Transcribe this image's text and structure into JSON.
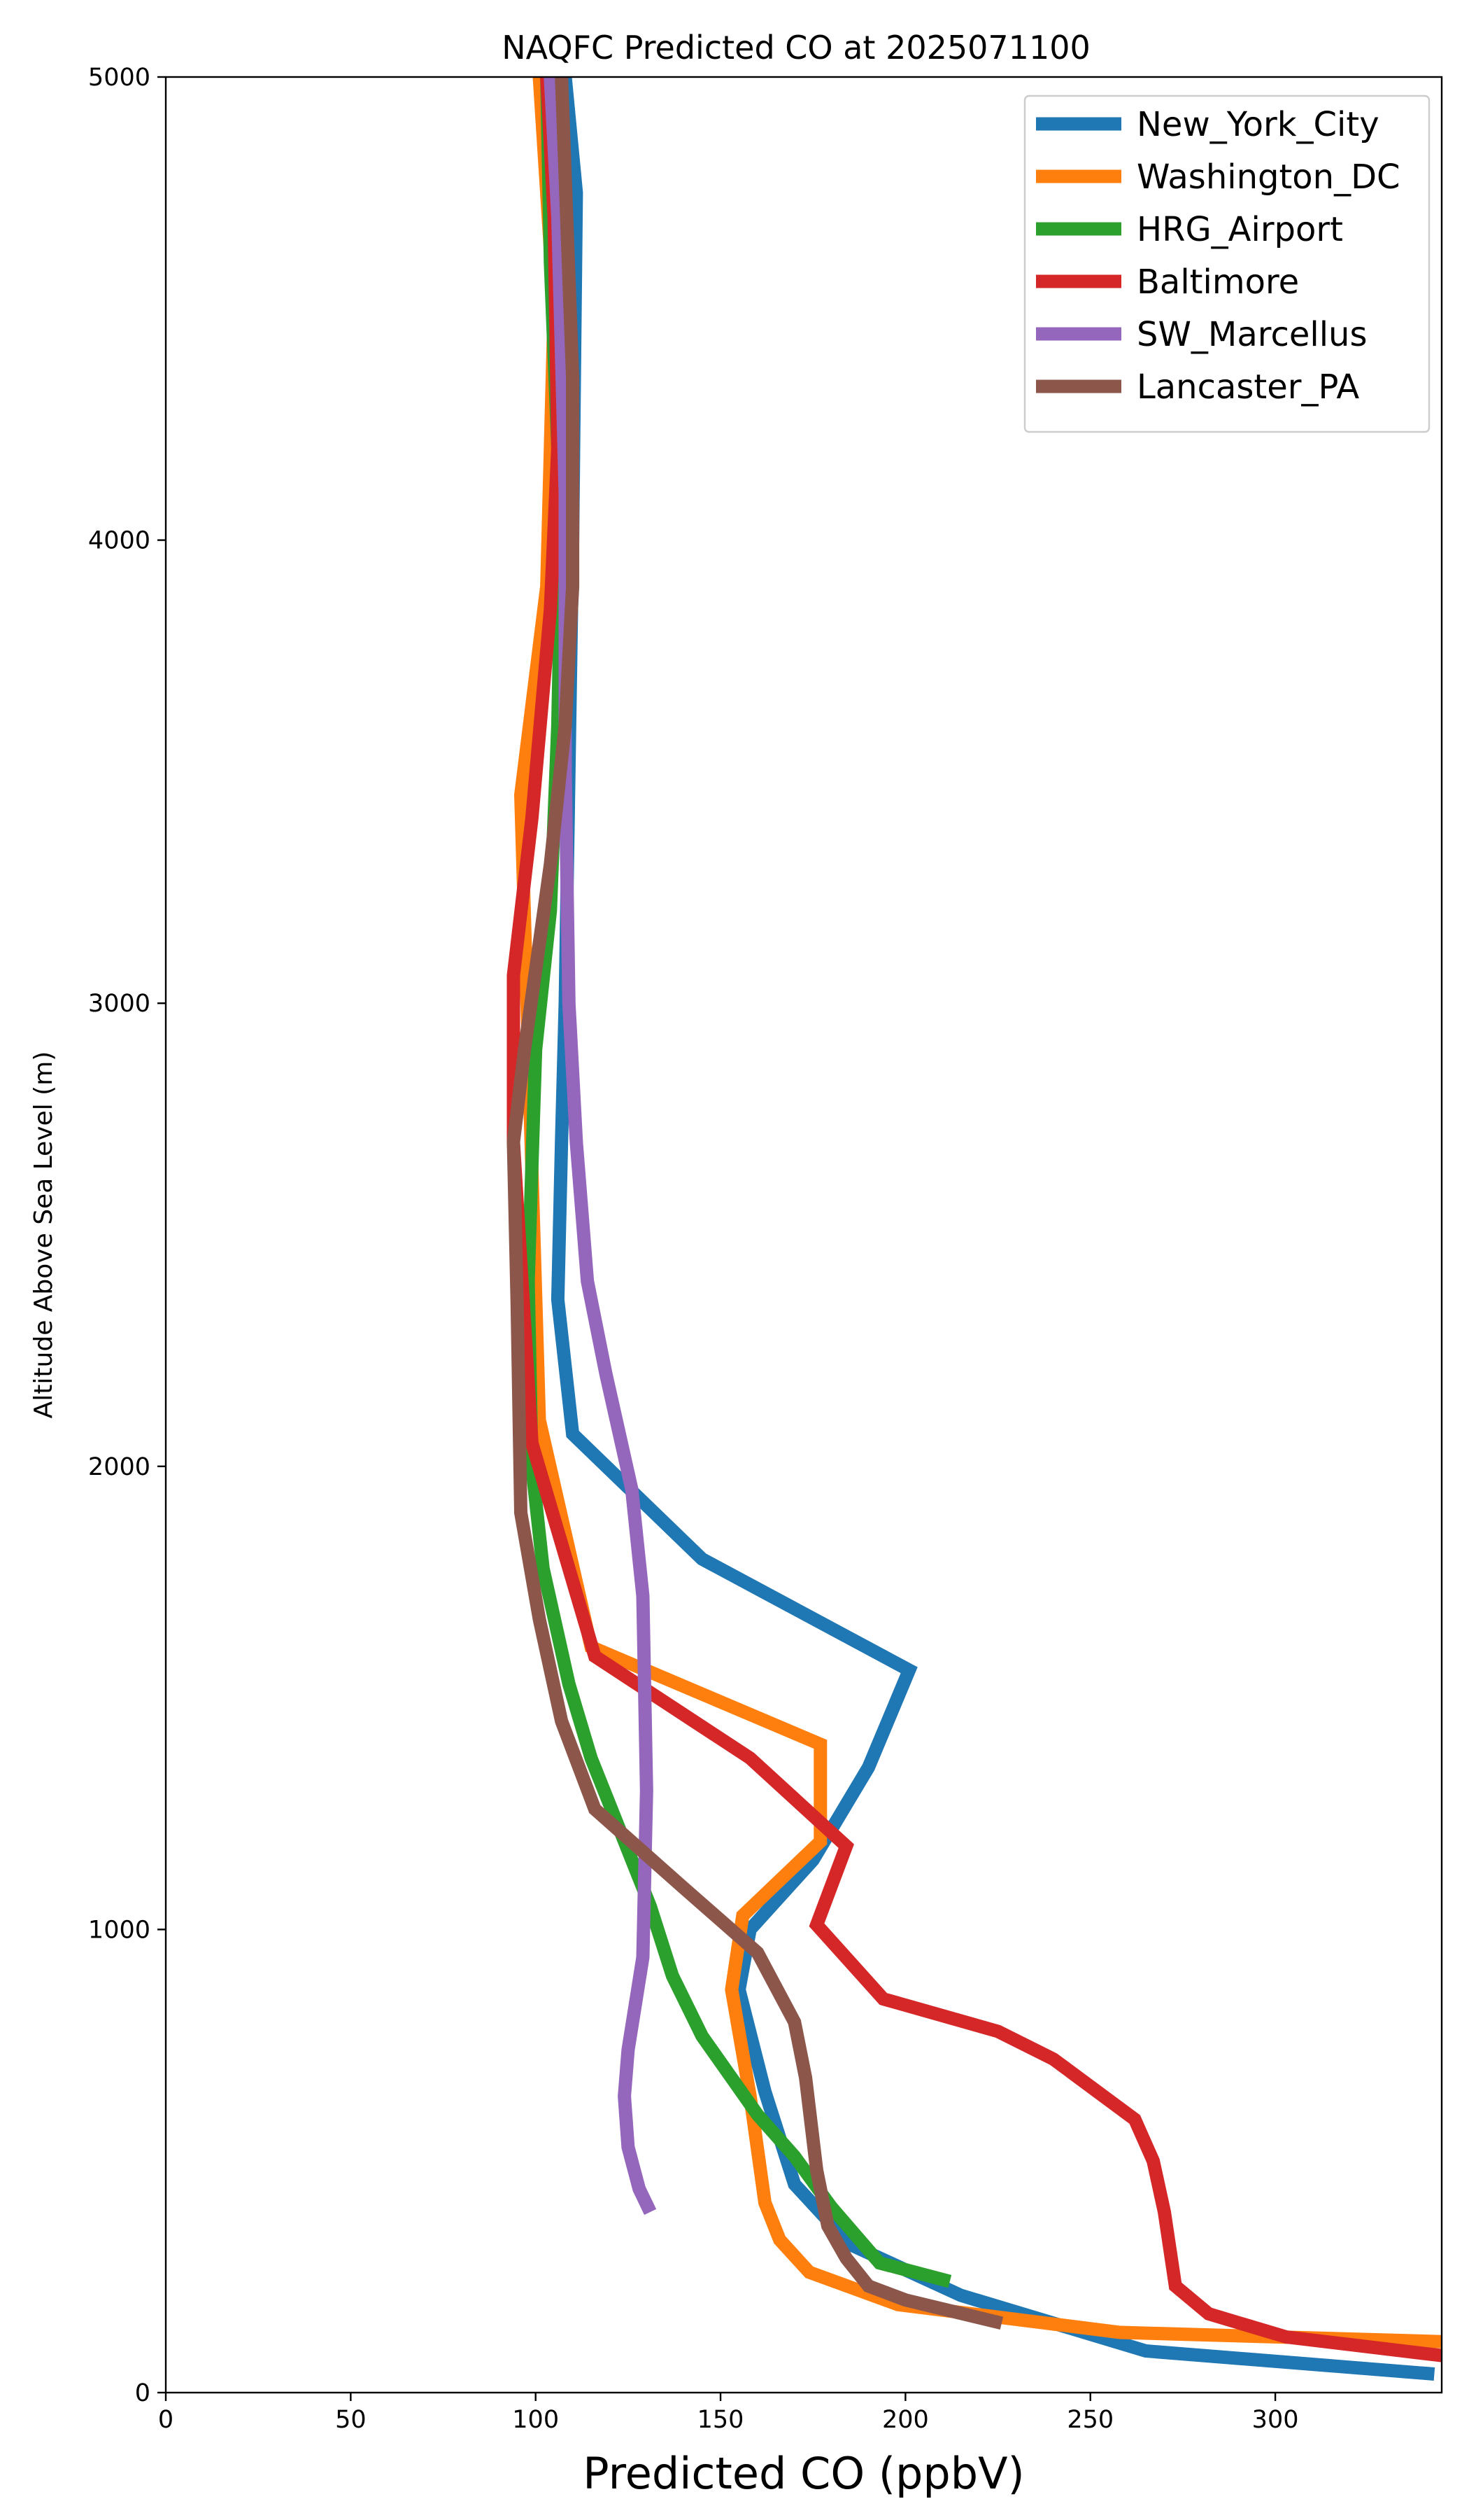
{
  "chart_data": {
    "type": "line",
    "title": "NAQFC Predicted CO at 2025071100",
    "xlabel": "Predicted CO (ppbV)",
    "ylabel": "Altitude Above Sea Level (m)",
    "xlim": [
      0,
      345
    ],
    "ylim": [
      0,
      5000
    ],
    "x_ticks": [
      0,
      50,
      100,
      150,
      200,
      250,
      300
    ],
    "y_ticks": [
      0,
      1000,
      2000,
      3000,
      4000,
      5000
    ],
    "grid": false,
    "legend_position": "upper right",
    "series": [
      {
        "name": "New_York_City",
        "color": "#1f77b4",
        "points": [
          [
            343,
            40
          ],
          [
            265,
            90
          ],
          [
            215,
            210
          ],
          [
            185,
            320
          ],
          [
            170,
            450
          ],
          [
            162,
            650
          ],
          [
            155,
            870
          ],
          [
            158,
            1000
          ],
          [
            175,
            1150
          ],
          [
            190,
            1350
          ],
          [
            201,
            1560
          ],
          [
            145,
            1800
          ],
          [
            110,
            2070
          ],
          [
            106,
            2360
          ],
          [
            107,
            2700
          ],
          [
            108,
            3000
          ],
          [
            110,
            4000
          ],
          [
            111,
            4750
          ],
          [
            108,
            5000
          ]
        ]
      },
      {
        "name": "Washington_DC",
        "color": "#ff7f0e",
        "points": [
          [
            345,
            110
          ],
          [
            258,
            130
          ],
          [
            198,
            190
          ],
          [
            174,
            260
          ],
          [
            166,
            330
          ],
          [
            162,
            410
          ],
          [
            158,
            640
          ],
          [
            153,
            870
          ],
          [
            156,
            1030
          ],
          [
            177,
            1190
          ],
          [
            177,
            1400
          ],
          [
            115,
            1610
          ],
          [
            101,
            2100
          ],
          [
            96,
            3450
          ],
          [
            103,
            3900
          ],
          [
            105,
            4500
          ],
          [
            101,
            5000
          ]
        ]
      },
      {
        "name": "HRG_Airport",
        "color": "#2ca02c",
        "points": [
          [
            212,
            240
          ],
          [
            193,
            280
          ],
          [
            180,
            400
          ],
          [
            170,
            510
          ],
          [
            160,
            600
          ],
          [
            145,
            770
          ],
          [
            137,
            900
          ],
          [
            131,
            1050
          ],
          [
            115,
            1370
          ],
          [
            109,
            1530
          ],
          [
            102,
            1780
          ],
          [
            99,
            2000
          ],
          [
            98,
            2400
          ],
          [
            100,
            2900
          ],
          [
            104,
            3200
          ],
          [
            106,
            3600
          ],
          [
            107,
            4000
          ],
          [
            104,
            4600
          ],
          [
            103,
            5000
          ]
        ]
      },
      {
        "name": "Baltimore",
        "color": "#d62728",
        "points": [
          [
            345,
            80
          ],
          [
            303,
            120
          ],
          [
            282,
            170
          ],
          [
            273,
            230
          ],
          [
            270,
            390
          ],
          [
            267,
            500
          ],
          [
            262,
            590
          ],
          [
            240,
            720
          ],
          [
            225,
            780
          ],
          [
            194,
            850
          ],
          [
            176,
            1010
          ],
          [
            184,
            1180
          ],
          [
            158,
            1370
          ],
          [
            116,
            1590
          ],
          [
            99,
            2050
          ],
          [
            94,
            2700
          ],
          [
            94,
            3060
          ],
          [
            99,
            3400
          ],
          [
            104,
            3850
          ],
          [
            106,
            4200
          ],
          [
            105,
            4700
          ],
          [
            103,
            5000
          ]
        ]
      },
      {
        "name": "SW_Marcellus",
        "color": "#9467bd",
        "points": [
          [
            131,
            390
          ],
          [
            128,
            440
          ],
          [
            125,
            530
          ],
          [
            124,
            640
          ],
          [
            125,
            740
          ],
          [
            129,
            940
          ],
          [
            130,
            1300
          ],
          [
            129,
            1720
          ],
          [
            126,
            1950
          ],
          [
            119,
            2200
          ],
          [
            114,
            2400
          ],
          [
            111,
            2700
          ],
          [
            109,
            3000
          ],
          [
            108,
            3500
          ],
          [
            108,
            4100
          ],
          [
            106,
            4700
          ],
          [
            104,
            5000
          ]
        ]
      },
      {
        "name": "Lancaster_PA",
        "color": "#8c564b",
        "points": [
          [
            226,
            150
          ],
          [
            200,
            200
          ],
          [
            190,
            230
          ],
          [
            184,
            290
          ],
          [
            179,
            360
          ],
          [
            176,
            480
          ],
          [
            173,
            680
          ],
          [
            170,
            800
          ],
          [
            160,
            950
          ],
          [
            140,
            1090
          ],
          [
            116,
            1260
          ],
          [
            107,
            1450
          ],
          [
            101,
            1670
          ],
          [
            96,
            1900
          ],
          [
            95,
            2350
          ],
          [
            94,
            2700
          ],
          [
            97,
            2900
          ],
          [
            104,
            3300
          ],
          [
            108,
            3600
          ],
          [
            110,
            3900
          ],
          [
            110,
            4350
          ],
          [
            107,
            5000
          ]
        ]
      }
    ]
  }
}
